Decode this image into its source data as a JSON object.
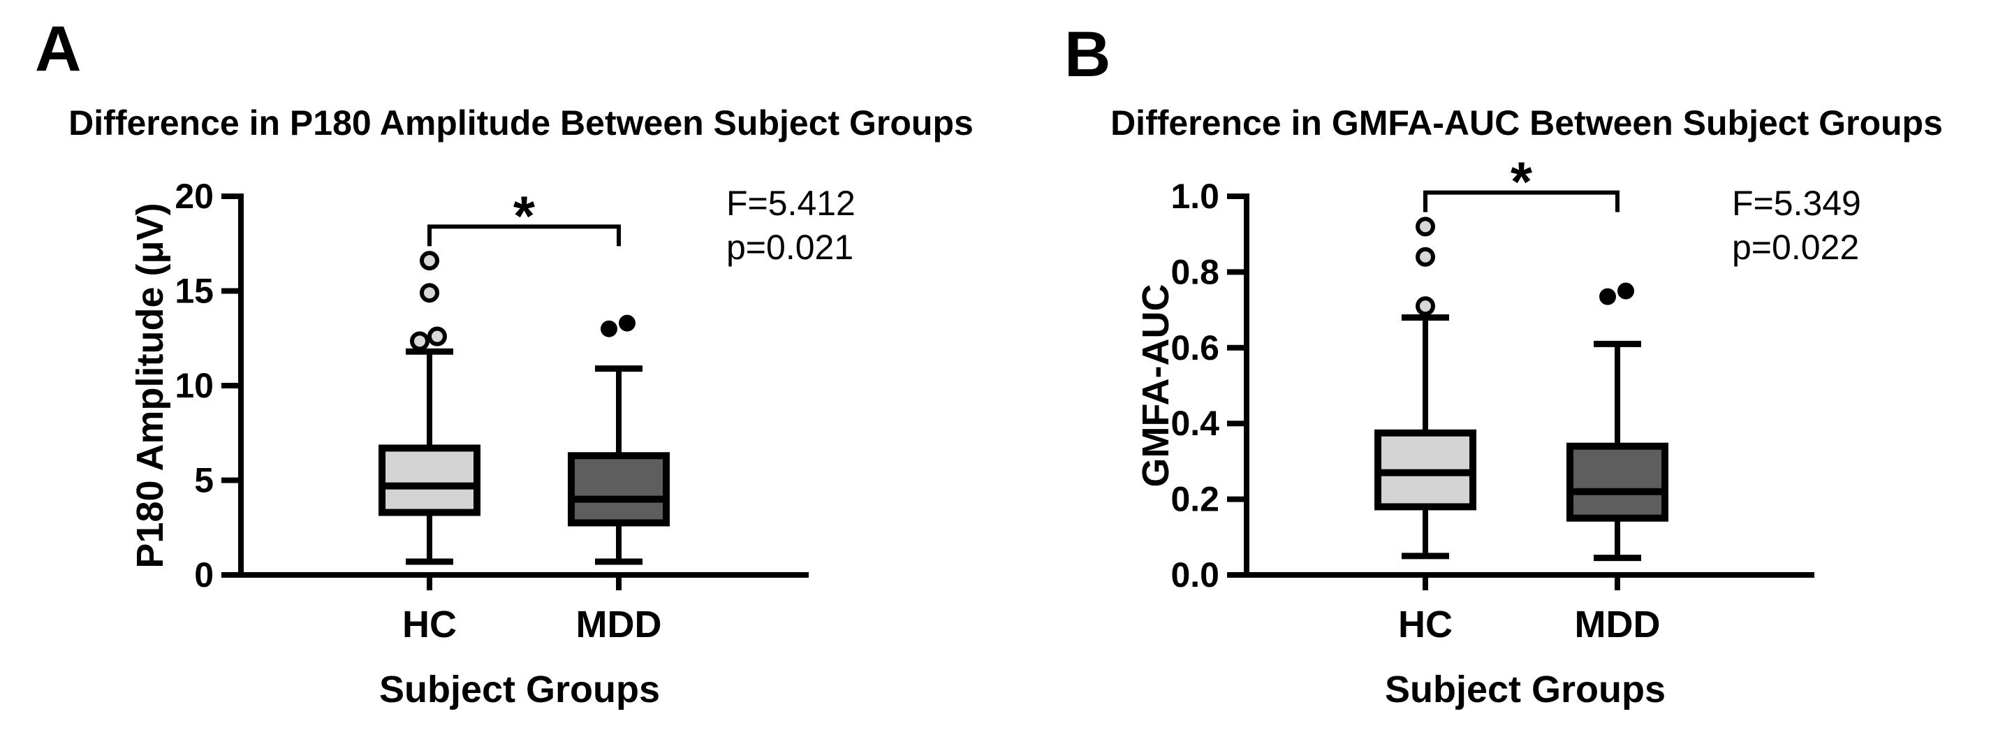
{
  "chart_data": [
    {
      "type": "box",
      "panel_letter": "A",
      "title": "Difference in P180 Amplitude Between Subject Groups",
      "xlabel": "Subject Groups",
      "ylabel": "P180 Amplitude (μV)",
      "ylim": [
        0,
        20
      ],
      "grid": false,
      "yticks": [
        0,
        5,
        10,
        15,
        20
      ],
      "ytick_labels": [
        "0",
        "5",
        "10",
        "15",
        "20"
      ],
      "categories": [
        "HC",
        "MDD"
      ],
      "series": [
        {
          "name": "HC",
          "whisker_low": 0.7,
          "q1": 3.3,
          "median": 4.7,
          "q3": 6.7,
          "whisker_high": 11.8,
          "outliers": [
            {
              "value": 12.35,
              "dx": -14,
              "style": "open"
            },
            {
              "value": 12.6,
              "dx": 11,
              "style": "open"
            },
            {
              "value": 14.9,
              "dx": 0,
              "style": "open"
            },
            {
              "value": 16.6,
              "dx": 0,
              "style": "open"
            }
          ],
          "fill": "#d4d4d4"
        },
        {
          "name": "MDD",
          "whisker_low": 0.7,
          "q1": 2.75,
          "median": 4.0,
          "q3": 6.3,
          "whisker_high": 10.9,
          "outliers": [
            {
              "value": 13.0,
              "dx": -14,
              "style": "filled"
            },
            {
              "value": 13.3,
              "dx": 12,
              "style": "filled"
            }
          ],
          "fill": "#5e5e5e"
        }
      ],
      "significance": {
        "label": "*",
        "bracket_y": 18.4,
        "between": [
          0,
          1
        ]
      },
      "stats_lines": [
        "F=5.412",
        "p=0.021"
      ],
      "layout": {
        "cat_x": [
          615,
          886
        ]
      }
    },
    {
      "type": "box",
      "panel_letter": "B",
      "title": "Difference in GMFA-AUC Between Subject Groups",
      "xlabel": "Subject Groups",
      "ylabel": "GMFA-AUC",
      "ylim": [
        0,
        1.0
      ],
      "grid": false,
      "yticks": [
        0,
        0.2,
        0.4,
        0.6,
        0.8,
        1.0
      ],
      "ytick_labels": [
        "0.0",
        "0.2",
        "0.4",
        "0.6",
        "0.8",
        "1.0"
      ],
      "categories": [
        "HC",
        "MDD"
      ],
      "series": [
        {
          "name": "HC",
          "whisker_low": 0.05,
          "q1": 0.18,
          "median": 0.27,
          "q3": 0.375,
          "whisker_high": 0.68,
          "outliers": [
            {
              "value": 0.71,
              "dx": 0,
              "style": "open"
            },
            {
              "value": 0.84,
              "dx": 0,
              "style": "open"
            },
            {
              "value": 0.92,
              "dx": 0,
              "style": "open"
            }
          ],
          "fill": "#d4d4d4"
        },
        {
          "name": "MDD",
          "whisker_low": 0.045,
          "q1": 0.15,
          "median": 0.22,
          "q3": 0.34,
          "whisker_high": 0.61,
          "outliers": [
            {
              "value": 0.735,
              "dx": -14,
              "style": "filled"
            },
            {
              "value": 0.75,
              "dx": 12,
              "style": "filled"
            }
          ],
          "fill": "#5e5e5e"
        }
      ],
      "significance": {
        "label": "*",
        "bracket_y": 1.01,
        "between": [
          0,
          1
        ]
      },
      "stats_lines": [
        "F=5.349",
        "p=0.022"
      ],
      "layout": {
        "cat_x": [
          601,
          876
        ]
      }
    }
  ],
  "colors": {
    "hc_box_fill": "#d4d4d4",
    "mdd_box_fill": "#5e5e5e",
    "open_outlier_fill": "#d8d8d8",
    "line": "#000000",
    "background": "#ffffff"
  }
}
